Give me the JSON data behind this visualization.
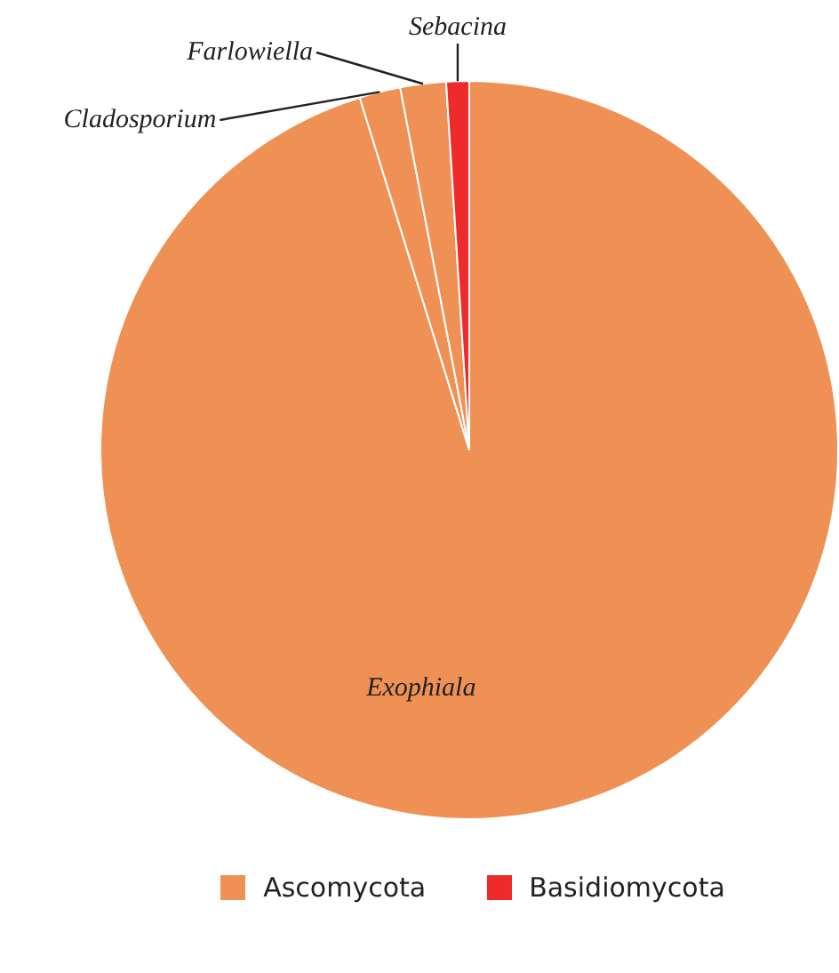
{
  "chart_data": {
    "type": "pie",
    "categories": [
      "Exophiala",
      "Cladosporium",
      "Farlowiella",
      "Sebacina"
    ],
    "values": [
      95.2,
      1.8,
      2.0,
      1.0
    ],
    "colors": [
      "#ef9155",
      "#ef9155",
      "#ef9155",
      "#ee2a2a"
    ],
    "annotations": [
      "Ascomycota",
      "Basidiomycota"
    ]
  }
}
